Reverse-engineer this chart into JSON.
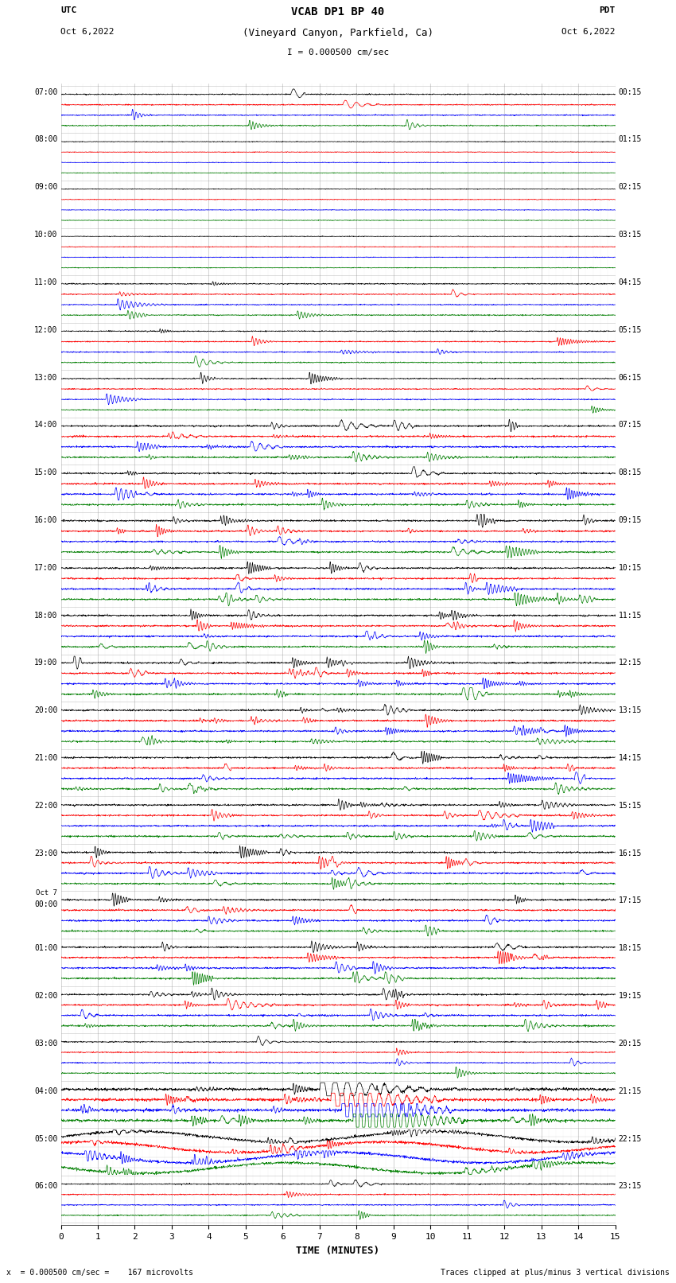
{
  "title_line1": "VCAB DP1 BP 40",
  "title_line2": "(Vineyard Canyon, Parkfield, Ca)",
  "title_line3": "I = 0.000500 cm/sec",
  "utc_label": "UTC",
  "utc_date": "Oct 6,2022",
  "pdt_label": "PDT",
  "pdt_date": "Oct 6,2022",
  "xlabel": "TIME (MINUTES)",
  "footer_left": "x  = 0.000500 cm/sec =    167 microvolts",
  "footer_right": "Traces clipped at plus/minus 3 vertical divisions",
  "xlim": [
    0,
    15
  ],
  "xticks": [
    0,
    1,
    2,
    3,
    4,
    5,
    6,
    7,
    8,
    9,
    10,
    11,
    12,
    13,
    14,
    15
  ],
  "left_times": [
    "07:00",
    "08:00",
    "09:00",
    "10:00",
    "11:00",
    "12:00",
    "13:00",
    "14:00",
    "15:00",
    "16:00",
    "17:00",
    "18:00",
    "19:00",
    "20:00",
    "21:00",
    "22:00",
    "23:00",
    "Oct 7\n00:00",
    "01:00",
    "02:00",
    "03:00",
    "04:00",
    "05:00",
    "06:00"
  ],
  "right_times": [
    "00:15",
    "01:15",
    "02:15",
    "03:15",
    "04:15",
    "05:15",
    "06:15",
    "07:15",
    "08:15",
    "09:15",
    "10:15",
    "11:15",
    "12:15",
    "13:15",
    "14:15",
    "15:15",
    "16:15",
    "17:15",
    "18:15",
    "19:15",
    "20:15",
    "21:15",
    "22:15",
    "23:15"
  ],
  "n_rows": 24,
  "colors": [
    "black",
    "red",
    "blue",
    "green"
  ],
  "background_color": "white",
  "fig_width": 8.5,
  "fig_height": 16.13,
  "dpi": 100
}
